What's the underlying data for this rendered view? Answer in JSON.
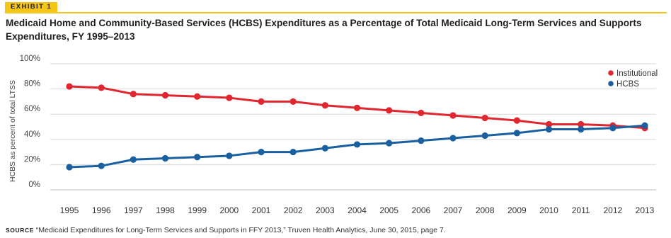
{
  "exhibit": {
    "label": "EXHIBIT 1"
  },
  "title": "Medicaid Home and Community-Based Services (HCBS) Expenditures as a Percentage of Total Medicaid Long-Term Services and Supports Expenditures, FY 1995–2013",
  "source": {
    "label": "SOURCE",
    "text": "“Medicaid Expenditures for Long-Term Services and Supports in FFY 2013,” Truven Health Analytics, June 30, 2015, page 7."
  },
  "colors": {
    "accent": "#f5c518",
    "institutional": "#e0262f",
    "hcbs": "#1a5fa0",
    "grid": "#d9d9d9",
    "text": "#333333"
  },
  "chart_data": {
    "type": "line",
    "title": "",
    "xlabel": "",
    "ylabel": "HCBS as percent of total LTSS",
    "x": [
      1995,
      1996,
      1997,
      1998,
      1999,
      2000,
      2001,
      2002,
      2003,
      2004,
      2005,
      2006,
      2007,
      2008,
      2009,
      2010,
      2011,
      2012,
      2013
    ],
    "x_tick_labels": [
      "1995",
      "1996",
      "1997",
      "1998",
      "1999",
      "2000",
      "2001",
      "2002",
      "2003",
      "2004",
      "2005",
      "2006",
      "2007",
      "2008",
      "2009",
      "2010",
      "2011",
      "2012",
      "2013"
    ],
    "ylim": [
      0,
      100
    ],
    "y_ticks": [
      0,
      20,
      40,
      60,
      80,
      100
    ],
    "y_tick_labels": [
      "0%",
      "20%",
      "40%",
      "60%",
      "80%",
      "100%"
    ],
    "grid": true,
    "legend_position": "top-right",
    "series": [
      {
        "name": "Institutional",
        "color": "#e0262f",
        "values": [
          82,
          81,
          76,
          75,
          74,
          73,
          70,
          70,
          67,
          65,
          63,
          61,
          59,
          57,
          55,
          52,
          52,
          51,
          49
        ]
      },
      {
        "name": "HCBS",
        "color": "#1a5fa0",
        "values": [
          18,
          19,
          24,
          25,
          26,
          27,
          30,
          30,
          33,
          36,
          37,
          39,
          41,
          43,
          45,
          48,
          48,
          49,
          51
        ]
      }
    ]
  }
}
